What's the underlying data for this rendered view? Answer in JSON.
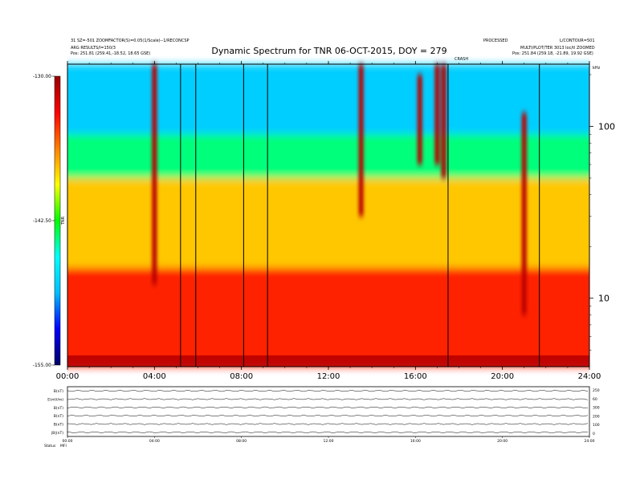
{
  "header": {
    "line1_left": "31 SZ=-501 ZOOMFACTOR(S)=0.05(1/Scale)--1/RECONCSP",
    "line2_left": "ARG RESULTS/I=150/3",
    "line3_left": "Pos: 251.81 (259.41,-18.52, 18.65 GSE)",
    "line1_right": "PROCESSED",
    "line2_right": "L/CONTOUR=501",
    "line3_right": "MULTI/PLOT/TER 3013 loc/tl ZOOMED",
    "line4_right": "Pos: 251.84 (259.18, -21.89, 19.92 GSE)",
    "tag_right": "kHz",
    "mark_label": "CRASH"
  },
  "chart_data": {
    "type": "heatmap",
    "title": "Dynamic Spectrum for TNR 06-OCT-2015, DOY = 279",
    "x_ticks": [
      "00:00",
      "04:00",
      "08:00",
      "12:00",
      "16:00",
      "20:00",
      "24:00"
    ],
    "x_range_hours": [
      0,
      24
    ],
    "y_scale": "log",
    "y_range_khz": [
      4,
      230
    ],
    "y_ticks": [
      "100",
      "10"
    ],
    "colorbar": {
      "label": "TNR",
      "ticks": [
        "-130.00",
        "-142.50",
        "-155.00"
      ],
      "range_db": [
        -155,
        -130
      ],
      "colors": [
        "#000066",
        "#0000ff",
        "#00bfff",
        "#00ffff",
        "#00ff00",
        "#ffff00",
        "#ff8000",
        "#ff0000",
        "#990000"
      ]
    },
    "vertical_lines_hours": [
      5.2,
      5.9,
      8.1,
      9.2,
      17.5,
      21.7
    ],
    "background_level_db": [
      {
        "from_khz": 230,
        "to_khz": 90,
        "level": -148
      },
      {
        "from_khz": 90,
        "to_khz": 50,
        "level": -144
      },
      {
        "from_khz": 50,
        "to_khz": 15,
        "level": -138
      },
      {
        "from_khz": 15,
        "to_khz": 4,
        "level": -134
      }
    ],
    "bursts": [
      {
        "hour": 4.0,
        "from_khz": 230,
        "to_khz": 12
      },
      {
        "hour": 13.5,
        "from_khz": 230,
        "to_khz": 30
      },
      {
        "hour": 16.2,
        "from_khz": 200,
        "to_khz": 60
      },
      {
        "hour": 17.0,
        "from_khz": 230,
        "to_khz": 60
      },
      {
        "hour": 17.3,
        "from_khz": 230,
        "to_khz": 50
      },
      {
        "hour": 21.0,
        "from_khz": 120,
        "to_khz": 8
      }
    ]
  },
  "bottom_panel": {
    "rows": [
      "B(nT)",
      "E(mV/m)",
      "B(nT)",
      "B(nT)",
      "B(nT)",
      "|B|(nT)"
    ],
    "right_ticks": [
      "250",
      "60",
      "300",
      "200",
      "100",
      "0"
    ],
    "x_ticks": [
      "00:00",
      "04:00",
      "08:00",
      "12:00",
      "16:00",
      "20:00",
      "24:00"
    ],
    "footer_left": "Status",
    "footer_value": "MFI"
  }
}
